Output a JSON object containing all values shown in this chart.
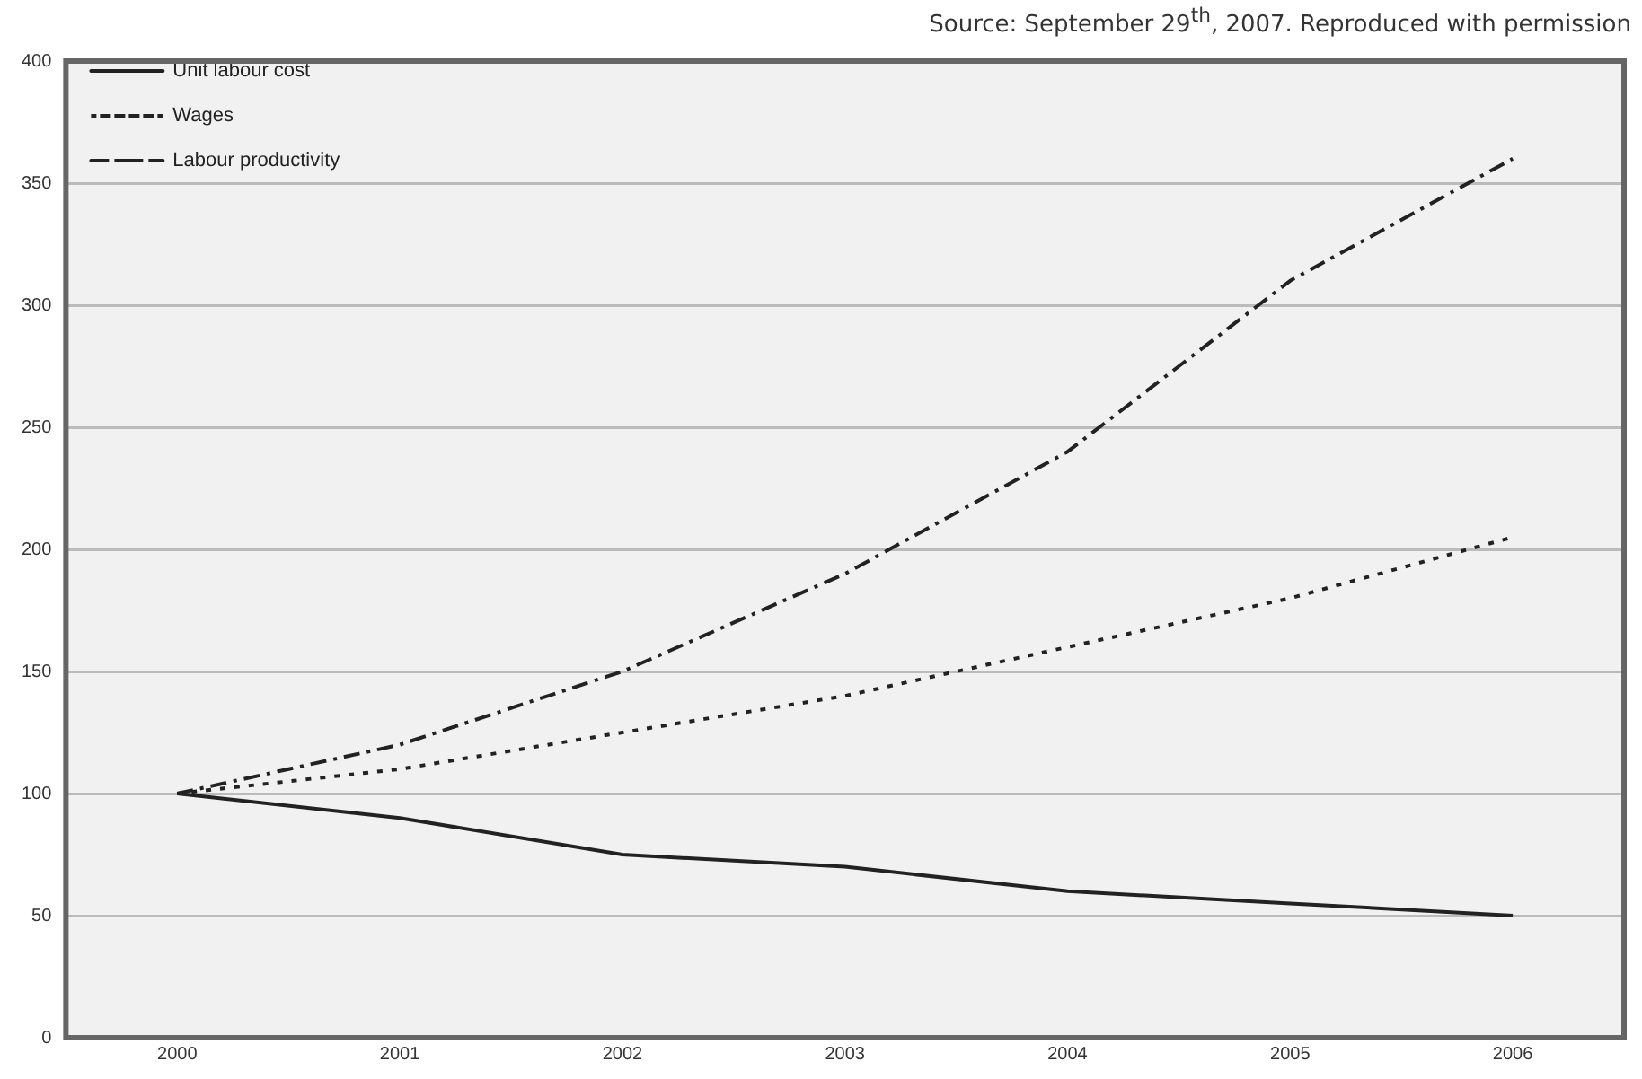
{
  "chart_data": {
    "type": "line",
    "categories": [
      "2000",
      "2001",
      "2002",
      "2003",
      "2004",
      "2005",
      "2006"
    ],
    "series": [
      {
        "name": "Unit labour cost",
        "color": "#222222",
        "line_style": "solid",
        "values": [
          100,
          90,
          75,
          70,
          60,
          55,
          50
        ]
      },
      {
        "name": "Wages",
        "color": "#222222",
        "line_style": "dotted",
        "values": [
          100,
          110,
          125,
          140,
          160,
          180,
          205
        ]
      },
      {
        "name": "Labour productivity",
        "color": "#222222",
        "line_style": "dashed",
        "values": [
          100,
          120,
          150,
          190,
          240,
          310,
          360
        ]
      }
    ],
    "ylim": [
      0,
      400
    ],
    "yticks": [
      0,
      50,
      100,
      150,
      200,
      250,
      300,
      350,
      400
    ],
    "grid": "y",
    "legend": "top left",
    "marker": "none",
    "annotations": [
      "Source: September 29$^{th}$, 2007. Reproduced with permission"
    ]
  }
}
